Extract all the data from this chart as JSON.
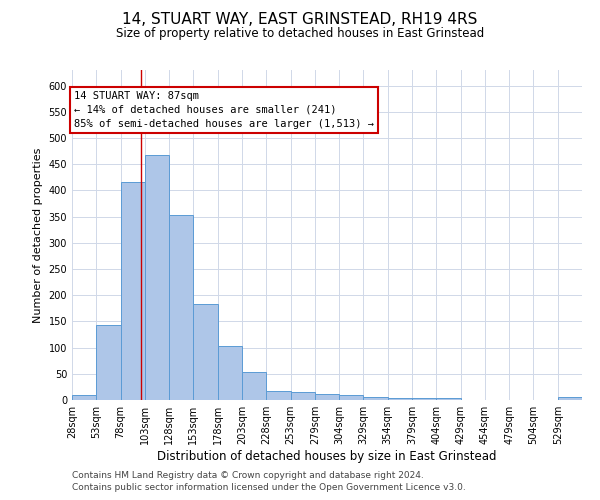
{
  "title": "14, STUART WAY, EAST GRINSTEAD, RH19 4RS",
  "subtitle": "Size of property relative to detached houses in East Grinstead",
  "xlabel": "Distribution of detached houses by size in East Grinstead",
  "ylabel": "Number of detached properties",
  "footer1": "Contains HM Land Registry data © Crown copyright and database right 2024.",
  "footer2": "Contains public sector information licensed under the Open Government Licence v3.0.",
  "bar_labels": [
    "28sqm",
    "53sqm",
    "78sqm",
    "103sqm",
    "128sqm",
    "153sqm",
    "178sqm",
    "203sqm",
    "228sqm",
    "253sqm",
    "279sqm",
    "304sqm",
    "329sqm",
    "354sqm",
    "379sqm",
    "404sqm",
    "429sqm",
    "454sqm",
    "479sqm",
    "504sqm",
    "529sqm"
  ],
  "bar_values": [
    10,
    143,
    416,
    468,
    354,
    184,
    103,
    54,
    18,
    16,
    12,
    9,
    6,
    4,
    4,
    4,
    0,
    0,
    0,
    0,
    6
  ],
  "bar_color": "#aec6e8",
  "bar_edge_color": "#5b9bd5",
  "grid_color": "#d0d8e8",
  "annotation_text": "14 STUART WAY: 87sqm\n← 14% of detached houses are smaller (241)\n85% of semi-detached houses are larger (1,513) →",
  "annotation_box_color": "#ffffff",
  "annotation_box_edge": "#cc0000",
  "vline_x": 87,
  "vline_color": "#cc0000",
  "ylim": [
    0,
    630
  ],
  "yticks": [
    0,
    50,
    100,
    150,
    200,
    250,
    300,
    350,
    400,
    450,
    500,
    550,
    600
  ],
  "bin_width": 25,
  "title_fontsize": 11,
  "subtitle_fontsize": 8.5,
  "xlabel_fontsize": 8.5,
  "ylabel_fontsize": 8,
  "tick_fontsize": 7,
  "footer_fontsize": 6.5,
  "annotation_fontsize": 7.5
}
